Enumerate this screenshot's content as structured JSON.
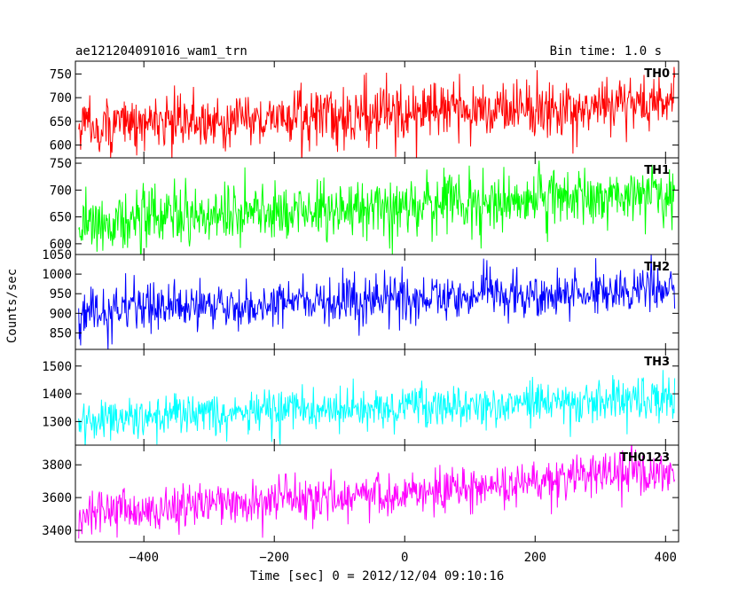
{
  "header": {
    "title": "ae121204091016_wam1_trn",
    "bin_time": "Bin time: 1.0 s"
  },
  "axes": {
    "xlabel": "Time [sec] 0 = 2012/12/04 09:10:16",
    "ylabel": "Counts/sec"
  },
  "chart_data": {
    "type": "line",
    "title": "ae121204091016_wam1_trn",
    "xlabel": "Time [sec] 0 = 2012/12/04 09:10:16",
    "ylabel": "Counts/sec",
    "xlim": [
      -505,
      420
    ],
    "xticks": [
      -400,
      -200,
      0,
      200,
      400
    ],
    "xtick_labels": [
      "−400",
      "−200",
      "0",
      "200",
      "400"
    ],
    "x_range_data": [
      -500,
      414
    ],
    "bin_time_s": 1.0,
    "panels": [
      {
        "name": "TH0",
        "color": "#ff0000",
        "ylim": [
          573,
          777
        ],
        "yticks": [
          600,
          650,
          700,
          750
        ],
        "trend_start": 640,
        "trend_end": 690,
        "noise": 30
      },
      {
        "name": "TH1",
        "color": "#00ff00",
        "ylim": [
          580,
          760
        ],
        "yticks": [
          600,
          650,
          700,
          750
        ],
        "trend_start": 640,
        "trend_end": 695,
        "noise": 28
      },
      {
        "name": "TH2",
        "color": "#0000ff",
        "ylim": [
          808,
          1050
        ],
        "yticks": [
          850,
          900,
          950,
          1000,
          1050
        ],
        "trend_start": 905,
        "trend_end": 965,
        "noise": 30
      },
      {
        "name": "TH3",
        "color": "#00ffff",
        "ylim": [
          1215,
          1560
        ],
        "yticks": [
          1300,
          1400,
          1500
        ],
        "trend_start": 1310,
        "trend_end": 1385,
        "noise": 38
      },
      {
        "name": "TH0123",
        "color": "#ff00ff",
        "ylim": [
          3330,
          3920
        ],
        "yticks": [
          3400,
          3600,
          3800
        ],
        "trend_start": 3500,
        "trend_end": 3750,
        "noise": 70
      }
    ]
  }
}
